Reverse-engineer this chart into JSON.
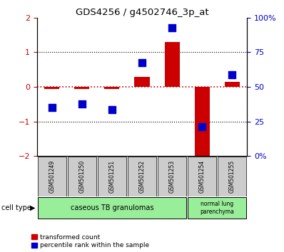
{
  "title": "GDS4256 / g4502746_3p_at",
  "samples": [
    "GSM501249",
    "GSM501250",
    "GSM501251",
    "GSM501252",
    "GSM501253",
    "GSM501254",
    "GSM501255"
  ],
  "red_bars": [
    -0.05,
    -0.05,
    -0.05,
    0.3,
    1.3,
    -2.1,
    0.15
  ],
  "blue_squares_left": [
    -0.6,
    -0.5,
    -0.65,
    0.7,
    1.7,
    -1.15,
    0.35
  ],
  "ylim_left": [
    -2,
    2
  ],
  "ylim_right": [
    0,
    100
  ],
  "left_ticks": [
    -2,
    -1,
    0,
    1,
    2
  ],
  "right_ticks": [
    0,
    25,
    50,
    75,
    100
  ],
  "right_tick_labels": [
    "0%",
    "25",
    "50",
    "75",
    "100%"
  ],
  "group1_samples": [
    0,
    1,
    2,
    3,
    4
  ],
  "group1_label": "caseous TB granulomas",
  "group2_samples": [
    5,
    6
  ],
  "group2_label": "normal lung\nparenchyma",
  "group_color": "#99ee99",
  "sample_box_color": "#cccccc",
  "cell_type_label": "cell type",
  "legend_red": "transformed count",
  "legend_blue": "percentile rank within the sample",
  "red_color": "#cc0000",
  "blue_color": "#0000cc",
  "bar_width": 0.5,
  "dot_size": 55
}
